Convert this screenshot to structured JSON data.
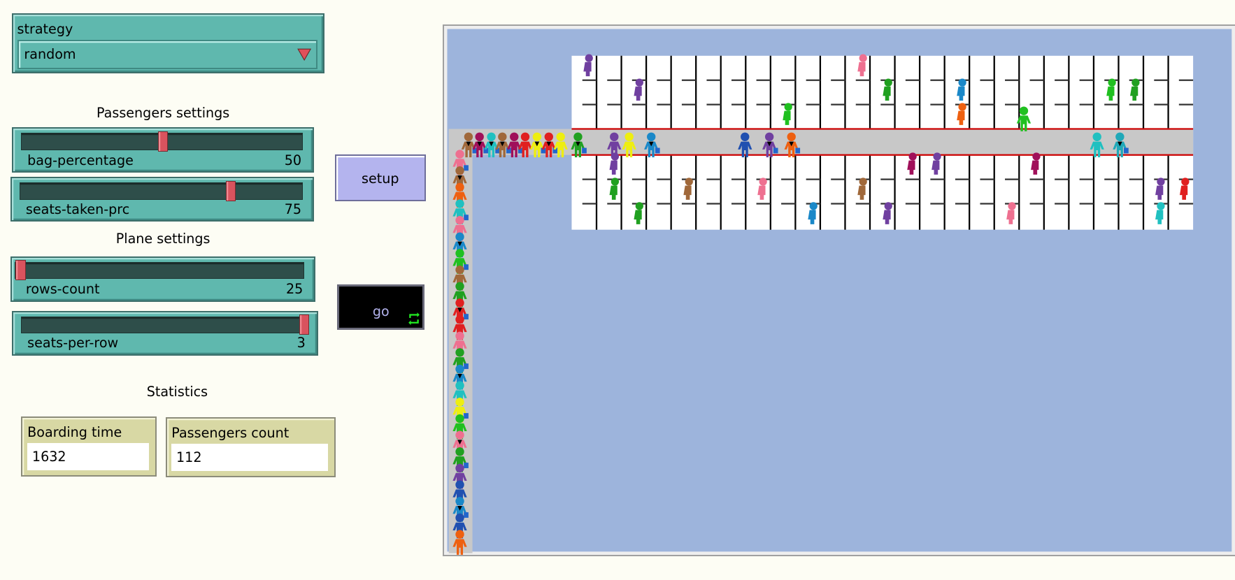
{
  "strategy": {
    "label": "strategy",
    "value": "random"
  },
  "passengers_settings": {
    "title": "Passengers settings",
    "sliders": [
      {
        "name": "bag-percentage",
        "value": "50",
        "fraction": 0.5
      },
      {
        "name": "seats-taken-prc",
        "value": "75",
        "fraction": 0.75
      }
    ]
  },
  "plane_settings": {
    "title": "Plane settings",
    "sliders": [
      {
        "name": "rows-count",
        "value": "25",
        "fraction": 0.0
      },
      {
        "name": "seats-per-row",
        "value": "3",
        "fraction": 1.0
      }
    ]
  },
  "buttons": {
    "setup": "setup",
    "go": "go",
    "go_icon": "forever-icon"
  },
  "statistics": {
    "title": "Statistics",
    "monitors": [
      {
        "label": "Boarding time",
        "value": "1632"
      },
      {
        "label": "Passengers count",
        "value": "112"
      }
    ]
  },
  "view": {
    "rows": 25,
    "seats_per_side": 3,
    "colors": {
      "background": "#9db4dc",
      "cabin": "#ffffff",
      "aisle": "#c8c8c8",
      "aisle_border": "#cc0000"
    }
  },
  "colors": {
    "widget": "#5fb8ae",
    "monitor": "#d8d8a4",
    "button": "#b4b4ee",
    "go_button": "#000000"
  }
}
